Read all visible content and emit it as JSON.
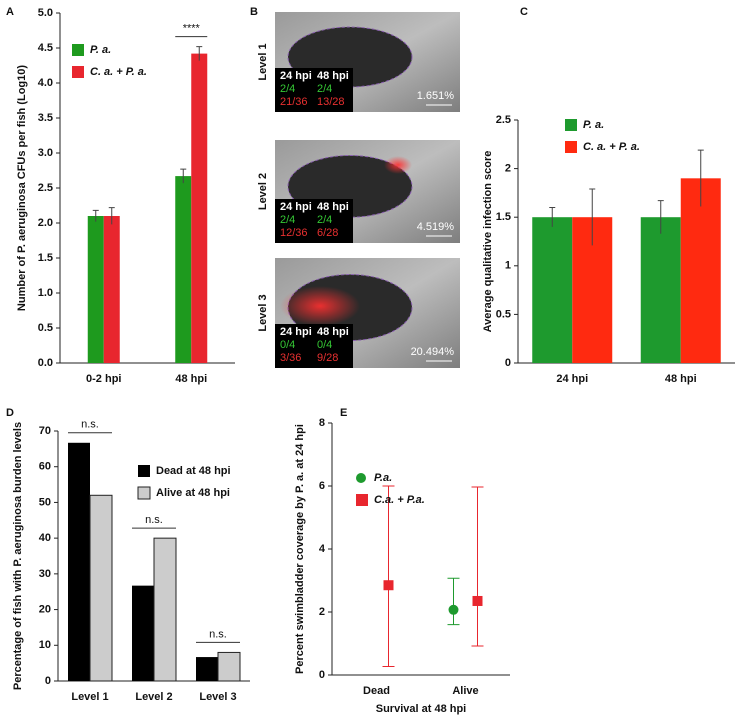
{
  "chart_data": [
    {
      "type": "bar",
      "label": "A",
      "ylabel": "Number of P. aeruginosa CFUs per fish (Log10)",
      "categories": [
        "0-2 hpi",
        "48 hpi"
      ],
      "annotations": [
        null,
        "****"
      ],
      "series": [
        {
          "name": "P. a.",
          "color": "#1e9a1e",
          "values": [
            2.1,
            2.67
          ],
          "errors": [
            0.08,
            0.1
          ]
        },
        {
          "name": "C. a. + P. a.",
          "color": "#e8262e",
          "values": [
            2.1,
            4.42
          ],
          "errors": [
            0.12,
            0.1
          ]
        }
      ],
      "ylim": [
        0,
        5
      ],
      "yticks": [
        {
          "value": 0,
          "label": "0.0"
        },
        0.5,
        {
          "value": 1,
          "label": "1.0"
        },
        1.5,
        {
          "value": 2,
          "label": "2.0"
        },
        2.5,
        {
          "value": 3,
          "label": "3.0"
        },
        3.5,
        {
          "value": 4,
          "label": "4.0"
        },
        4.5,
        {
          "value": 5,
          "label": "5.0"
        }
      ]
    },
    {
      "type": "bar",
      "label": "C",
      "ylabel": "Average qualitative infection score",
      "categories": [
        "24 hpi",
        "48 hpi"
      ],
      "series": [
        {
          "name": "P. a.",
          "color": "#1e9a2e",
          "values": [
            1.5,
            1.5
          ],
          "errors": [
            0.1,
            0.17
          ]
        },
        {
          "name": "C. a. + P. a.",
          "color": "#ff2a10",
          "values": [
            1.5,
            1.9
          ],
          "errors": [
            0.29,
            0.29
          ]
        }
      ],
      "ylim": [
        0,
        2.5
      ],
      "yticks": [
        0,
        0.5,
        1,
        1.5,
        2,
        2.5
      ]
    },
    {
      "type": "bar",
      "label": "D",
      "ylabel": "Percentage of fish with P. aeruginosa burden levels",
      "categories": [
        "Level 1",
        "Level 2",
        "Level 3"
      ],
      "annotations": [
        "n.s.",
        "n.s.",
        "n.s."
      ],
      "series": [
        {
          "name": "Dead at 48 hpi",
          "color": "#000000",
          "values": [
            66.7,
            26.7,
            6.7
          ]
        },
        {
          "name": "Alive at 48 hpi",
          "color": "#cccccc",
          "values": [
            52,
            40,
            8
          ]
        }
      ],
      "ylim": [
        0,
        70
      ],
      "yticks": [
        0,
        10,
        20,
        30,
        40,
        50,
        60,
        70
      ]
    },
    {
      "type": "scatter",
      "label": "E",
      "ylabel": "Percent swimbladder coverage by P. a. at 24 hpi",
      "xlabel": "Survival at 48 hpi",
      "categories": [
        "Dead",
        "Alive"
      ],
      "series": [
        {
          "name": "P.a.",
          "color": "#1e9a2e",
          "marker": "circle",
          "values": [
            null,
            2.07
          ],
          "lower": [
            null,
            1.6
          ],
          "upper": [
            null,
            3.07
          ]
        },
        {
          "name": "C.a. + P.a.",
          "color": "#e8262e",
          "marker": "square",
          "values": [
            2.85,
            2.35
          ],
          "lower": [
            0.27,
            0.92
          ],
          "upper": [
            6.0,
            5.97
          ]
        }
      ],
      "ylim": [
        0,
        8
      ],
      "yticks": [
        0,
        2,
        4,
        6,
        8
      ]
    }
  ],
  "image_panel": {
    "label": "B",
    "images": [
      {
        "level": "Level 1",
        "headers": [
          "24 hpi",
          "48 hpi"
        ],
        "green": [
          "2/4",
          "2/4"
        ],
        "red": [
          "21/36",
          "13/28"
        ],
        "coverage": "1.651%"
      },
      {
        "level": "Level 2",
        "headers": [
          "24 hpi",
          "48 hpi"
        ],
        "green": [
          "2/4",
          "2/4"
        ],
        "red": [
          "12/36",
          "6/28"
        ],
        "coverage": "4.519%"
      },
      {
        "level": "Level 3",
        "headers": [
          "24 hpi",
          "48 hpi"
        ],
        "green": [
          "0/4",
          "0/4"
        ],
        "red": [
          "3/36",
          "9/28"
        ],
        "coverage": "20.494%"
      }
    ]
  }
}
